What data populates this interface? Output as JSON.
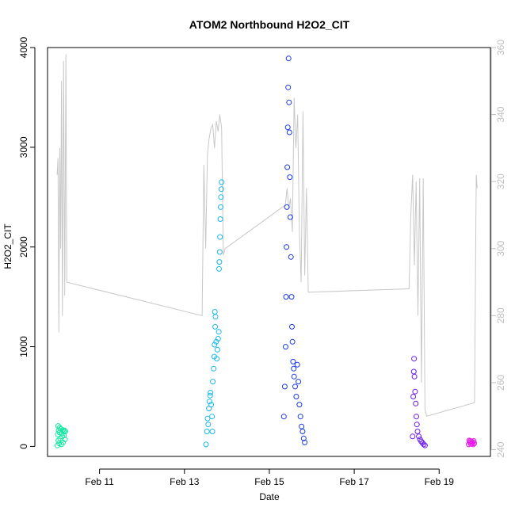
{
  "chart_data": {
    "type": "scatter",
    "title": "ATOM2 Northbound H2O2_CIT",
    "xlabel": "Date",
    "ylabel": "H2O2_CIT",
    "x_ticks": [
      "Feb 11",
      "Feb 13",
      "Feb 15",
      "Feb 17",
      "Feb 19"
    ],
    "y_ticks": [
      0,
      1000,
      2000,
      3000,
      4000
    ],
    "y2_ticks": [
      240,
      260,
      280,
      300,
      320,
      340,
      360
    ],
    "xlim": [
      "2017-02-09T18:36",
      "2017-02-20T05:00"
    ],
    "ylim": [
      -100,
      4000
    ],
    "y2lim": [
      238,
      360
    ],
    "grid": false,
    "colors": {
      "secondary_line": "#c8c8c8",
      "axis": "#000000",
      "right_axis": "#bfbfbf"
    },
    "series": [
      {
        "color": "#17e8a0",
        "x_range": [
          "2017-02-10T00:10",
          "2017-02-10T04:40"
        ],
        "points": [
          [
            0.0,
            10
          ],
          [
            0.05,
            120
          ],
          [
            0.1,
            205
          ],
          [
            0.12,
            60
          ],
          [
            0.18,
            160
          ],
          [
            0.22,
            30
          ],
          [
            0.28,
            140
          ],
          [
            0.3,
            190
          ],
          [
            0.36,
            80
          ],
          [
            0.42,
            175
          ],
          [
            0.5,
            20
          ],
          [
            0.55,
            130
          ],
          [
            0.6,
            100
          ],
          [
            0.66,
            165
          ],
          [
            0.7,
            40
          ],
          [
            0.78,
            150
          ],
          [
            0.82,
            110
          ],
          [
            0.9,
            160
          ],
          [
            0.95,
            70
          ],
          [
            1.0,
            150
          ]
        ]
      },
      {
        "color": "#19b8ee",
        "x_range": [
          "2017-02-13T12:00",
          "2017-02-13T21:00"
        ],
        "points": [
          [
            0.02,
            20
          ],
          [
            0.08,
            150
          ],
          [
            0.12,
            280
          ],
          [
            0.16,
            220
          ],
          [
            0.2,
            380
          ],
          [
            0.24,
            450
          ],
          [
            0.28,
            510
          ],
          [
            0.3,
            540
          ],
          [
            0.35,
            420
          ],
          [
            0.4,
            300
          ],
          [
            0.42,
            150
          ],
          [
            0.45,
            650
          ],
          [
            0.5,
            780
          ],
          [
            0.54,
            900
          ],
          [
            0.56,
            1020
          ],
          [
            0.58,
            1350
          ],
          [
            0.6,
            1200
          ],
          [
            0.62,
            1300
          ],
          [
            0.66,
            1050
          ],
          [
            0.7,
            880
          ],
          [
            0.74,
            970
          ],
          [
            0.78,
            1080
          ],
          [
            0.82,
            1150
          ],
          [
            0.84,
            1780
          ],
          [
            0.86,
            1850
          ],
          [
            0.88,
            1950
          ],
          [
            0.9,
            2100
          ],
          [
            0.92,
            2280
          ],
          [
            0.94,
            2400
          ],
          [
            0.96,
            2500
          ],
          [
            0.98,
            2580
          ],
          [
            1.0,
            2650
          ]
        ]
      },
      {
        "color": "#1a3ae8",
        "x_range": [
          "2017-02-15T08:00",
          "2017-02-15T20:00"
        ],
        "points": [
          [
            0.02,
            300
          ],
          [
            0.06,
            600
          ],
          [
            0.1,
            1000
          ],
          [
            0.12,
            1500
          ],
          [
            0.14,
            2000
          ],
          [
            0.16,
            2400
          ],
          [
            0.18,
            2800
          ],
          [
            0.2,
            3200
          ],
          [
            0.22,
            3600
          ],
          [
            0.24,
            3890
          ],
          [
            0.26,
            3450
          ],
          [
            0.28,
            3150
          ],
          [
            0.3,
            2700
          ],
          [
            0.32,
            2300
          ],
          [
            0.35,
            1900
          ],
          [
            0.38,
            1500
          ],
          [
            0.4,
            1200
          ],
          [
            0.42,
            1050
          ],
          [
            0.45,
            850
          ],
          [
            0.48,
            780
          ],
          [
            0.5,
            700
          ],
          [
            0.55,
            600
          ],
          [
            0.6,
            500
          ],
          [
            0.65,
            820
          ],
          [
            0.7,
            650
          ],
          [
            0.75,
            420
          ],
          [
            0.8,
            300
          ],
          [
            0.85,
            200
          ],
          [
            0.9,
            150
          ],
          [
            0.95,
            80
          ],
          [
            1.0,
            40
          ]
        ]
      },
      {
        "color": "#6a1af0",
        "x_range": [
          "2017-02-18T09:00",
          "2017-02-18T16:00"
        ],
        "points": [
          [
            0.0,
            100
          ],
          [
            0.05,
            500
          ],
          [
            0.1,
            750
          ],
          [
            0.12,
            880
          ],
          [
            0.15,
            700
          ],
          [
            0.2,
            550
          ],
          [
            0.25,
            430
          ],
          [
            0.3,
            300
          ],
          [
            0.35,
            220
          ],
          [
            0.4,
            150
          ],
          [
            0.5,
            100
          ],
          [
            0.6,
            70
          ],
          [
            0.7,
            50
          ],
          [
            0.8,
            35
          ],
          [
            0.9,
            20
          ],
          [
            1.0,
            10
          ]
        ]
      },
      {
        "color": "#e81ae8",
        "x_range": [
          "2017-02-19T16:40",
          "2017-02-19T19:50"
        ],
        "points": [
          [
            0.0,
            20
          ],
          [
            0.1,
            60
          ],
          [
            0.2,
            40
          ],
          [
            0.3,
            55
          ],
          [
            0.4,
            25
          ],
          [
            0.5,
            50
          ],
          [
            0.6,
            30
          ],
          [
            0.7,
            45
          ],
          [
            0.8,
            20
          ],
          [
            0.9,
            55
          ],
          [
            1.0,
            30
          ]
        ]
      }
    ],
    "secondary_line": {
      "axis": "y2",
      "color": "#c8c8c8",
      "points": [
        [
          "2017-02-10T00:00",
          322
        ],
        [
          "2017-02-10T00:30",
          327
        ],
        [
          "2017-02-10T01:00",
          275
        ],
        [
          "2017-02-10T01:30",
          330
        ],
        [
          "2017-02-10T02:00",
          300
        ],
        [
          "2017-02-10T02:30",
          350
        ],
        [
          "2017-02-10T03:00",
          280
        ],
        [
          "2017-02-10T03:40",
          356
        ],
        [
          "2017-02-10T04:20",
          286
        ],
        [
          "2017-02-10T05:00",
          358
        ],
        [
          "2017-02-10T05:30",
          290
        ],
        [
          "2017-02-13T10:00",
          280
        ],
        [
          "2017-02-13T11:00",
          325
        ],
        [
          "2017-02-13T12:00",
          300
        ],
        [
          "2017-02-13T13:00",
          328
        ],
        [
          "2017-02-13T14:00",
          333
        ],
        [
          "2017-02-13T15:00",
          336
        ],
        [
          "2017-02-13T16:00",
          337
        ],
        [
          "2017-02-13T17:00",
          330
        ],
        [
          "2017-02-13T18:00",
          338
        ],
        [
          "2017-02-13T19:00",
          335
        ],
        [
          "2017-02-13T20:00",
          340
        ],
        [
          "2017-02-13T21:00",
          336
        ],
        [
          "2017-02-13T22:00",
          298
        ],
        [
          "2017-02-13T23:00",
          300
        ],
        [
          "2017-02-15T09:00",
          313
        ],
        [
          "2017-02-15T10:00",
          318
        ],
        [
          "2017-02-15T11:00",
          312
        ],
        [
          "2017-02-15T12:00",
          315
        ],
        [
          "2017-02-15T13:00",
          305
        ],
        [
          "2017-02-15T14:00",
          345
        ],
        [
          "2017-02-15T15:00",
          330
        ],
        [
          "2017-02-15T16:00",
          340
        ],
        [
          "2017-02-15T17:00",
          305
        ],
        [
          "2017-02-15T18:00",
          290
        ],
        [
          "2017-02-15T19:00",
          341
        ],
        [
          "2017-02-15T20:00",
          292
        ],
        [
          "2017-02-15T21:00",
          318
        ],
        [
          "2017-02-15T22:00",
          287
        ],
        [
          "2017-02-18T07:00",
          288
        ],
        [
          "2017-02-18T08:00",
          310
        ],
        [
          "2017-02-18T09:00",
          322
        ],
        [
          "2017-02-18T10:00",
          295
        ],
        [
          "2017-02-18T11:00",
          320
        ],
        [
          "2017-02-18T12:00",
          280
        ],
        [
          "2017-02-18T13:00",
          321
        ],
        [
          "2017-02-18T14:00",
          260
        ],
        [
          "2017-02-18T15:00",
          321
        ],
        [
          "2017-02-18T16:00",
          252
        ],
        [
          "2017-02-18T17:00",
          250
        ],
        [
          "2017-02-19T20:00",
          254
        ],
        [
          "2017-02-19T21:00",
          322
        ],
        [
          "2017-02-19T21:30",
          318
        ]
      ]
    }
  }
}
